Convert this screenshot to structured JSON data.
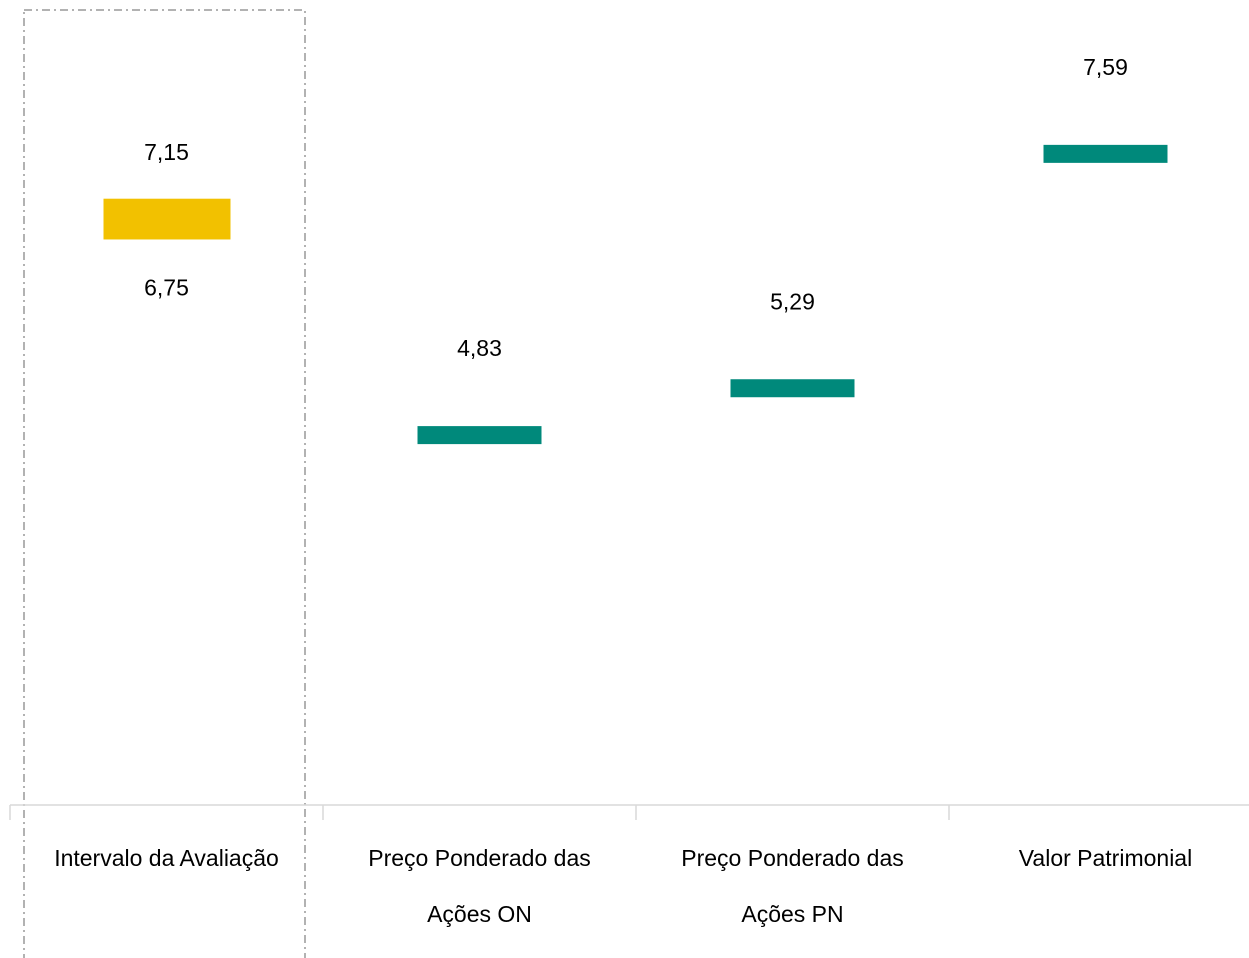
{
  "chart_data": {
    "type": "floating_bar",
    "categories": [
      "Intervalo da Avaliação",
      "Preço Ponderado das Ações ON",
      "Preço Ponderado das Ações PN",
      "Valor Patrimonial"
    ],
    "values": [
      [
        6.75,
        7.15
      ],
      4.83,
      5.29,
      7.59
    ],
    "value_labels": [
      [
        "6,75",
        "7,15"
      ],
      "4,83",
      "5,29",
      "7,59"
    ],
    "range_color": "#f2c100",
    "marker_color": "#00897b",
    "ylim": [
      1.2,
      9.1
    ]
  }
}
